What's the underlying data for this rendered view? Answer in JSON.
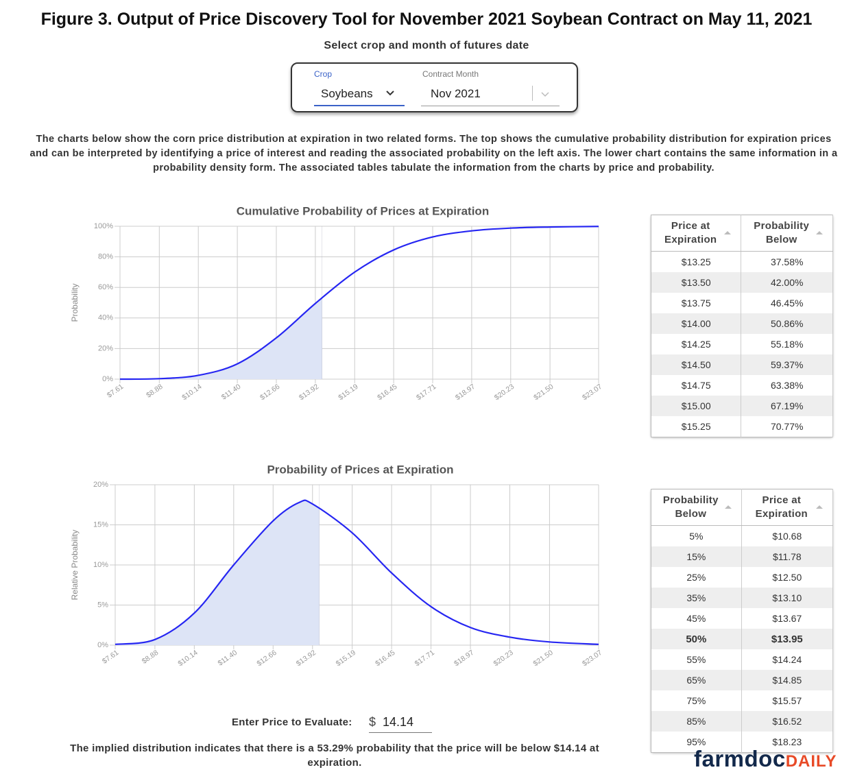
{
  "header": {
    "title": "Figure 3. Output of Price Discovery Tool for November 2021 Soybean Contract on May 11, 2021",
    "subtitle": "Select crop and month of futures date"
  },
  "selectors": {
    "crop_label": "Crop",
    "crop_value": "Soybeans",
    "month_label": "Contract Month",
    "month_value": "Nov 2021"
  },
  "description": "The charts below show the corn price distribution at expiration in two related forms. The top shows the cumulative probability distribution for expiration prices and can be interpreted by identifying a price of interest and reading the associated probability on the left axis. The lower chart contains the same information in a probability density form. The associated tables tabulate the information from the charts by price and probability.",
  "chart_data": [
    {
      "type": "line",
      "title": "Cumulative Probability of Prices at Expiration",
      "ylabel": "Probability",
      "x": [
        7.61,
        8.88,
        10.14,
        11.4,
        12.66,
        13.92,
        15.19,
        16.45,
        17.71,
        18.97,
        20.23,
        21.5,
        23.07
      ],
      "values": [
        0,
        0.3,
        2.5,
        10,
        27,
        49.5,
        70,
        84.5,
        93,
        97,
        98.8,
        99.5,
        99.9
      ],
      "color": "#2626f2",
      "fill": "#dde4f6",
      "xlim": [
        7.61,
        23.07
      ],
      "xticks": [
        {
          "value": 7.61,
          "label": "$7.61"
        },
        {
          "value": 8.88,
          "label": "$8.88"
        },
        {
          "value": 10.14,
          "label": "$10.14"
        },
        {
          "value": 11.4,
          "label": "$11.40"
        },
        {
          "value": 12.66,
          "label": "$12.66"
        },
        {
          "value": 13.92,
          "label": "$13.92"
        },
        {
          "value": 15.19,
          "label": "$15.19"
        },
        {
          "value": 16.45,
          "label": "$16.45"
        },
        {
          "value": 17.71,
          "label": "$17.71"
        },
        {
          "value": 18.97,
          "label": "$18.97"
        },
        {
          "value": 20.23,
          "label": "$20.23"
        },
        {
          "value": 21.5,
          "label": "$21.50"
        },
        {
          "value": 23.07,
          "label": "$23.07"
        }
      ],
      "ylim": [
        0,
        100
      ],
      "yticks": [
        {
          "value": 0,
          "label": "0%"
        },
        {
          "value": 20,
          "label": "20%"
        },
        {
          "value": 40,
          "label": "40%"
        },
        {
          "value": 60,
          "label": "60%"
        },
        {
          "value": 80,
          "label": "80%"
        },
        {
          "value": 100,
          "label": "100%"
        }
      ],
      "grid": true
    },
    {
      "type": "line",
      "title": "Probability of Prices at Expiration",
      "ylabel": "Relative Probability",
      "x": [
        7.61,
        8.88,
        10.14,
        11.4,
        12.66,
        13.5,
        13.92,
        15.19,
        16.45,
        17.71,
        18.97,
        20.23,
        21.5,
        23.07
      ],
      "values": [
        0.1,
        0.7,
        4,
        10,
        15.5,
        17.8,
        17.6,
        14,
        9,
        4.8,
        2.2,
        1,
        0.4,
        0.1
      ],
      "color": "#2626f2",
      "fill": "#dde4f6",
      "xlim": [
        7.61,
        23.07
      ],
      "xticks": [
        {
          "value": 7.61,
          "label": "$7.61"
        },
        {
          "value": 8.88,
          "label": "$8.88"
        },
        {
          "value": 10.14,
          "label": "$10.14"
        },
        {
          "value": 11.4,
          "label": "$11.40"
        },
        {
          "value": 12.66,
          "label": "$12.66"
        },
        {
          "value": 13.92,
          "label": "$13.92"
        },
        {
          "value": 15.19,
          "label": "$15.19"
        },
        {
          "value": 16.45,
          "label": "$16.45"
        },
        {
          "value": 17.71,
          "label": "$17.71"
        },
        {
          "value": 18.97,
          "label": "$18.97"
        },
        {
          "value": 20.23,
          "label": "$20.23"
        },
        {
          "value": 21.5,
          "label": "$21.50"
        },
        {
          "value": 23.07,
          "label": "$23.07"
        }
      ],
      "ylim": [
        0,
        20
      ],
      "yticks": [
        {
          "value": 0,
          "label": "0%"
        },
        {
          "value": 5,
          "label": "5%"
        },
        {
          "value": 10,
          "label": "10%"
        },
        {
          "value": 15,
          "label": "15%"
        },
        {
          "value": 20,
          "label": "20%"
        }
      ],
      "grid": true
    }
  ],
  "tables": [
    {
      "headers": [
        "Price at Expiration",
        "Probability Below"
      ],
      "rows": [
        [
          "$13.25",
          "37.58%"
        ],
        [
          "$13.50",
          "42.00%"
        ],
        [
          "$13.75",
          "46.45%"
        ],
        [
          "$14.00",
          "50.86%"
        ],
        [
          "$14.25",
          "55.18%"
        ],
        [
          "$14.50",
          "59.37%"
        ],
        [
          "$14.75",
          "63.38%"
        ],
        [
          "$15.00",
          "67.19%"
        ],
        [
          "$15.25",
          "70.77%"
        ]
      ]
    },
    {
      "headers": [
        "Probability Below",
        "Price at Expiration"
      ],
      "rows": [
        [
          "5%",
          "$10.68"
        ],
        [
          "15%",
          "$11.78"
        ],
        [
          "25%",
          "$12.50"
        ],
        [
          "35%",
          "$13.10"
        ],
        [
          "45%",
          "$13.67"
        ],
        [
          "50%",
          "$13.95"
        ],
        [
          "55%",
          "$14.24"
        ],
        [
          "65%",
          "$14.85"
        ],
        [
          "75%",
          "$15.57"
        ],
        [
          "85%",
          "$16.52"
        ],
        [
          "95%",
          "$18.23"
        ]
      ],
      "bold_row": 5
    }
  ],
  "evaluator": {
    "label": "Enter Price to Evaluate:",
    "currency": "$",
    "value": 14.14,
    "result": "The implied distribution indicates that there is a 53.29% probability that the price will be below $14.14 at expiration."
  },
  "logo": {
    "main": "farmdoc",
    "accent": "DAILY"
  }
}
